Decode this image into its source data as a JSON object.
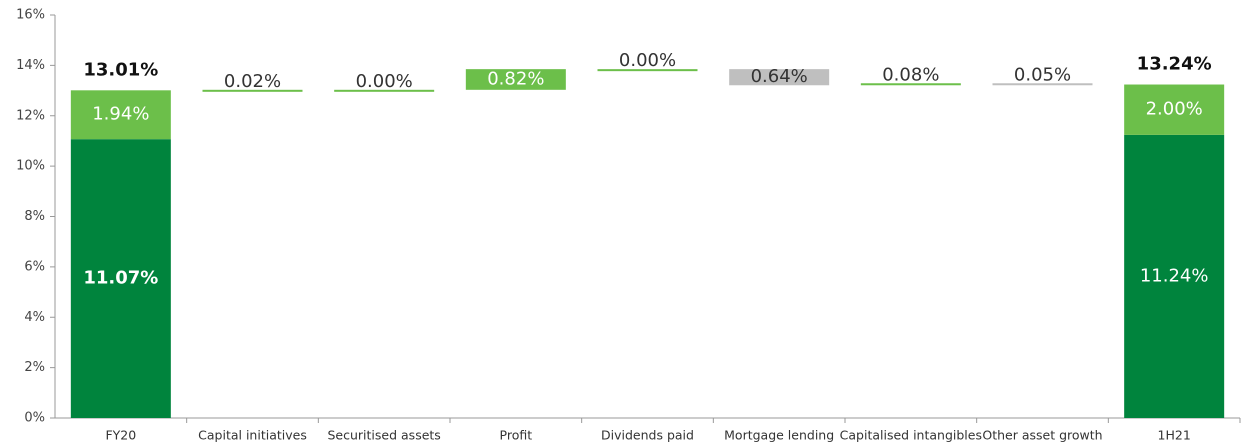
{
  "chart_data": {
    "type": "waterfall",
    "categories": [
      "FY20",
      "Capital initiatives",
      "Securitised assets",
      "Profit",
      "Dividends paid",
      "Mortgage lending",
      "Capitalised intangibles",
      "Other asset growth",
      "1H21"
    ],
    "base": [
      11.07,
      null,
      null,
      null,
      null,
      null,
      null,
      null,
      11.24
    ],
    "base_labels": [
      "11.07%",
      null,
      null,
      null,
      null,
      null,
      null,
      null,
      "11.24%"
    ],
    "top": [
      1.94,
      null,
      null,
      null,
      null,
      null,
      null,
      null,
      2.0
    ],
    "top_labels": [
      "1.94%",
      null,
      null,
      null,
      null,
      null,
      null,
      null,
      "2.00%"
    ],
    "totals": [
      13.01,
      null,
      null,
      null,
      null,
      null,
      null,
      null,
      13.24
    ],
    "total_labels": [
      "13.01%",
      null,
      null,
      null,
      null,
      null,
      null,
      null,
      "13.24%"
    ],
    "changes": [
      null,
      0.02,
      0.0,
      0.82,
      0.0,
      -0.64,
      0.08,
      -0.05,
      null
    ],
    "change_labels": [
      null,
      "0.02%",
      "0.00%",
      "0.82%",
      "0.00%",
      "0.64%",
      "0.08%",
      "0.05%",
      null
    ],
    "colors": {
      "base": "#00843d",
      "top": "#6cbf4a",
      "increase": "#6cbf4a",
      "decrease": "#bfbfbf"
    },
    "ylim": [
      0,
      16
    ],
    "yticks": [
      {
        "value": 0,
        "label": "0%"
      },
      {
        "value": 2,
        "label": "2%"
      },
      {
        "value": 4,
        "label": "4%"
      },
      {
        "value": 6,
        "label": "6%"
      },
      {
        "value": 8,
        "label": "8%"
      },
      {
        "value": 10,
        "label": "10%"
      },
      {
        "value": 12,
        "label": "12%"
      },
      {
        "value": 14,
        "label": "14%"
      },
      {
        "value": 16,
        "label": "16%"
      }
    ]
  }
}
